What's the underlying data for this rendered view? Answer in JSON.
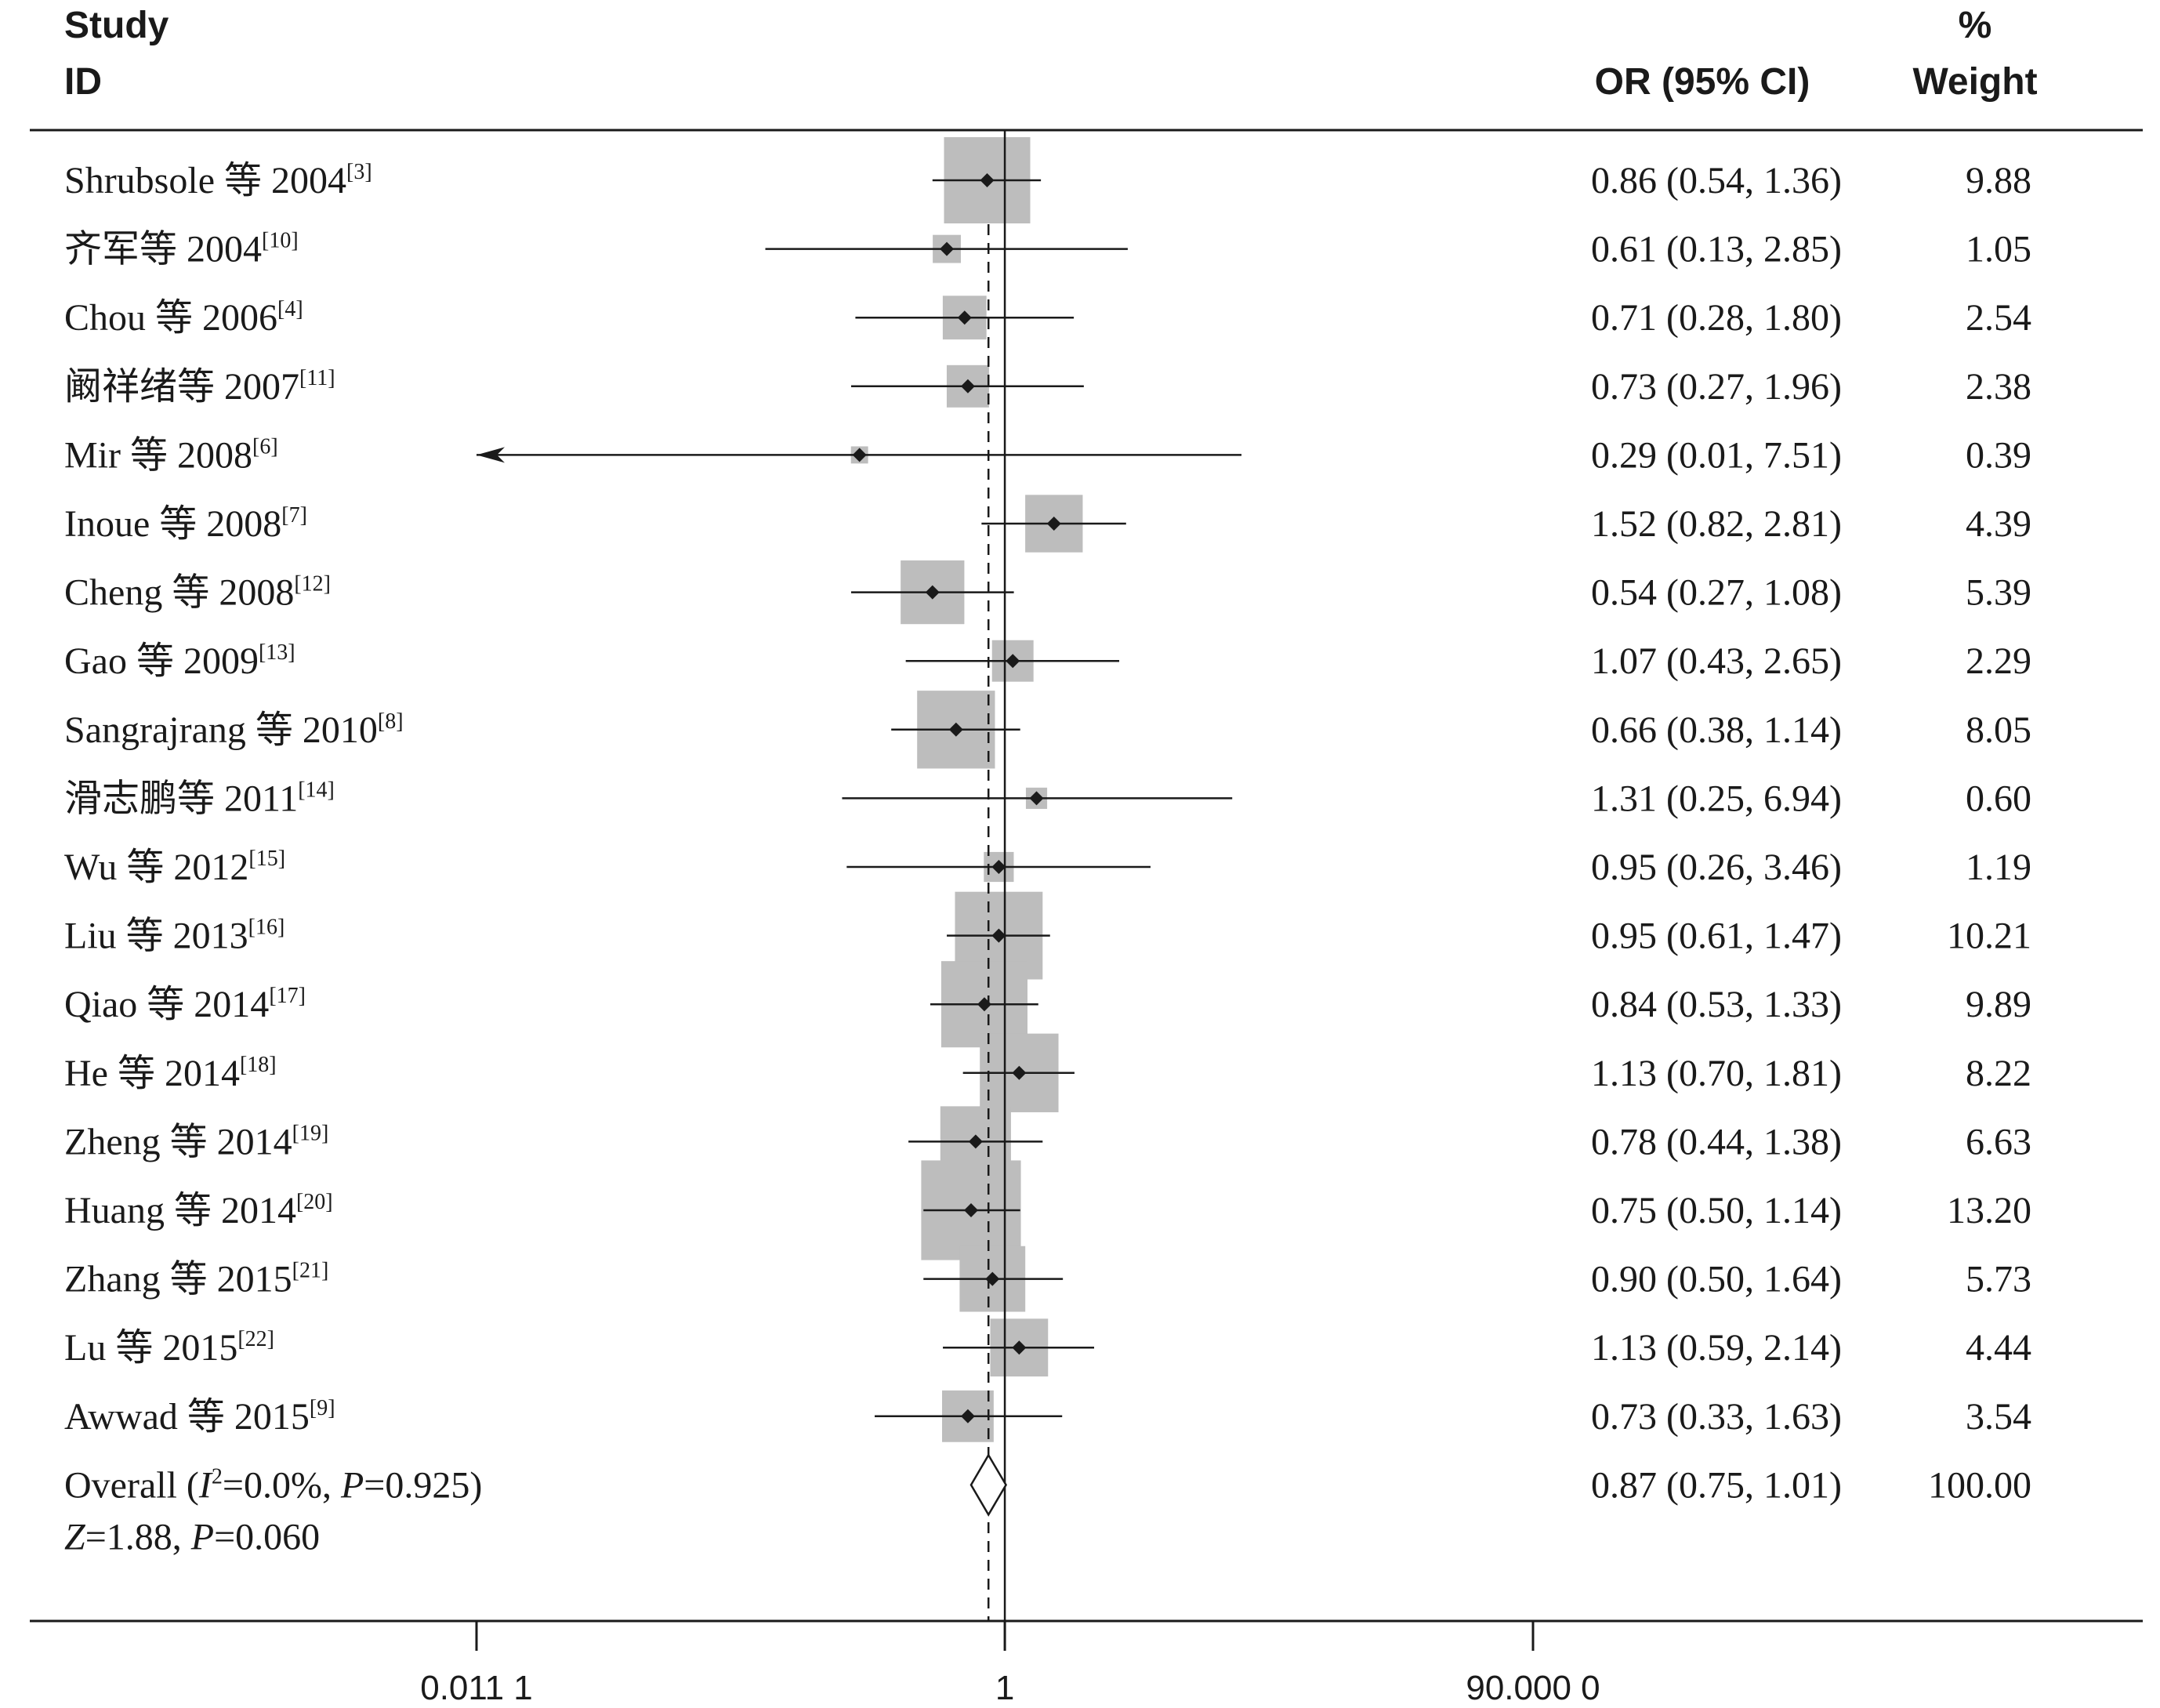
{
  "headers": {
    "study_line1": "Study",
    "study_line2": "ID",
    "or_ci": "OR (95% CI)",
    "weight_line1": "%",
    "weight_line2": "Weight"
  },
  "chart_data": {
    "type": "forest",
    "xscale": "log",
    "xlim": [
      0.0111,
      90.0
    ],
    "xticks": [
      0.0111,
      1,
      90.0
    ],
    "xtick_labels": [
      "0.011 1",
      "1",
      "90.000 0"
    ],
    "reference_line": 1,
    "pooled_line": 0.87,
    "colors": {
      "box": "#bdbdbd",
      "marker": "#1a1a1a",
      "line": "#1a1a1a"
    },
    "studies": [
      {
        "name": "Shrubsole 等 2004",
        "ref": "[3]",
        "or": 0.86,
        "lo": 0.54,
        "hi": 1.36,
        "or_text": "0.86 (0.54, 1.36)",
        "weight": 9.88,
        "weight_text": "9.88"
      },
      {
        "name": "齐军等 2004",
        "ref": "[10]",
        "or": 0.61,
        "lo": 0.13,
        "hi": 2.85,
        "or_text": "0.61 (0.13, 2.85)",
        "weight": 1.05,
        "weight_text": "1.05"
      },
      {
        "name": "Chou 等 2006",
        "ref": "[4]",
        "or": 0.71,
        "lo": 0.28,
        "hi": 1.8,
        "or_text": "0.71 (0.28, 1.80)",
        "weight": 2.54,
        "weight_text": "2.54"
      },
      {
        "name": "阚祥绪等 2007",
        "ref": "[11]",
        "or": 0.73,
        "lo": 0.27,
        "hi": 1.96,
        "or_text": "0.73 (0.27, 1.96)",
        "weight": 2.38,
        "weight_text": "2.38"
      },
      {
        "name": "Mir 等 2008",
        "ref": "[6]",
        "or": 0.29,
        "lo": 0.01,
        "hi": 7.51,
        "or_text": "0.29 (0.01, 7.51)",
        "weight": 0.39,
        "weight_text": "0.39"
      },
      {
        "name": "Inoue 等 2008",
        "ref": "[7]",
        "or": 1.52,
        "lo": 0.82,
        "hi": 2.81,
        "or_text": "1.52 (0.82, 2.81)",
        "weight": 4.39,
        "weight_text": "4.39"
      },
      {
        "name": "Cheng 等 2008",
        "ref": "[12]",
        "or": 0.54,
        "lo": 0.27,
        "hi": 1.08,
        "or_text": "0.54 (0.27, 1.08)",
        "weight": 5.39,
        "weight_text": "5.39"
      },
      {
        "name": "Gao 等 2009",
        "ref": "[13]",
        "or": 1.07,
        "lo": 0.43,
        "hi": 2.65,
        "or_text": "1.07 (0.43, 2.65)",
        "weight": 2.29,
        "weight_text": "2.29"
      },
      {
        "name": "Sangrajrang 等 2010",
        "ref": "[8]",
        "or": 0.66,
        "lo": 0.38,
        "hi": 1.14,
        "or_text": "0.66 (0.38, 1.14)",
        "weight": 8.05,
        "weight_text": "8.05"
      },
      {
        "name": "滑志鹏等 2011",
        "ref": "[14]",
        "or": 1.31,
        "lo": 0.25,
        "hi": 6.94,
        "or_text": "1.31 (0.25, 6.94)",
        "weight": 0.6,
        "weight_text": "0.60"
      },
      {
        "name": "Wu 等 2012",
        "ref": "[15]",
        "or": 0.95,
        "lo": 0.26,
        "hi": 3.46,
        "or_text": "0.95 (0.26, 3.46)",
        "weight": 1.19,
        "weight_text": "1.19"
      },
      {
        "name": "Liu 等 2013",
        "ref": "[16]",
        "or": 0.95,
        "lo": 0.61,
        "hi": 1.47,
        "or_text": "0.95 (0.61, 1.47)",
        "weight": 10.21,
        "weight_text": "10.21"
      },
      {
        "name": "Qiao 等 2014",
        "ref": "[17]",
        "or": 0.84,
        "lo": 0.53,
        "hi": 1.33,
        "or_text": "0.84 (0.53, 1.33)",
        "weight": 9.89,
        "weight_text": "9.89"
      },
      {
        "name": "He 等 2014",
        "ref": "[18]",
        "or": 1.13,
        "lo": 0.7,
        "hi": 1.81,
        "or_text": "1.13 (0.70, 1.81)",
        "weight": 8.22,
        "weight_text": "8.22"
      },
      {
        "name": "Zheng 等 2014",
        "ref": "[19]",
        "or": 0.78,
        "lo": 0.44,
        "hi": 1.38,
        "or_text": "0.78 (0.44, 1.38)",
        "weight": 6.63,
        "weight_text": "6.63"
      },
      {
        "name": "Huang 等 2014",
        "ref": "[20]",
        "or": 0.75,
        "lo": 0.5,
        "hi": 1.14,
        "or_text": "0.75 (0.50, 1.14)",
        "weight": 13.2,
        "weight_text": "13.20"
      },
      {
        "name": "Zhang 等 2015",
        "ref": "[21]",
        "or": 0.9,
        "lo": 0.5,
        "hi": 1.64,
        "or_text": "0.90 (0.50, 1.64)",
        "weight": 5.73,
        "weight_text": "5.73"
      },
      {
        "name": "Lu 等 2015",
        "ref": "[22]",
        "or": 1.13,
        "lo": 0.59,
        "hi": 2.14,
        "or_text": "1.13 (0.59, 2.14)",
        "weight": 4.44,
        "weight_text": "4.44"
      },
      {
        "name": "Awwad 等 2015",
        "ref": "[9]",
        "or": 0.73,
        "lo": 0.33,
        "hi": 1.63,
        "or_text": "0.73 (0.33, 1.63)",
        "weight": 3.54,
        "weight_text": "3.54"
      }
    ],
    "overall": {
      "label_prefix": "Overall (",
      "i_sym": "I",
      "i_sup": "2",
      "i_val": "=0.0%, ",
      "p_sym": "P",
      "p_val": "=0.925)",
      "z_sym": "Z",
      "z_val": "=1.88, ",
      "p2_sym": "P",
      "p2_val": "=0.060",
      "or": 0.87,
      "lo": 0.75,
      "hi": 1.01,
      "or_text": "0.87 (0.75, 1.01)",
      "weight_text": "100.00"
    }
  }
}
